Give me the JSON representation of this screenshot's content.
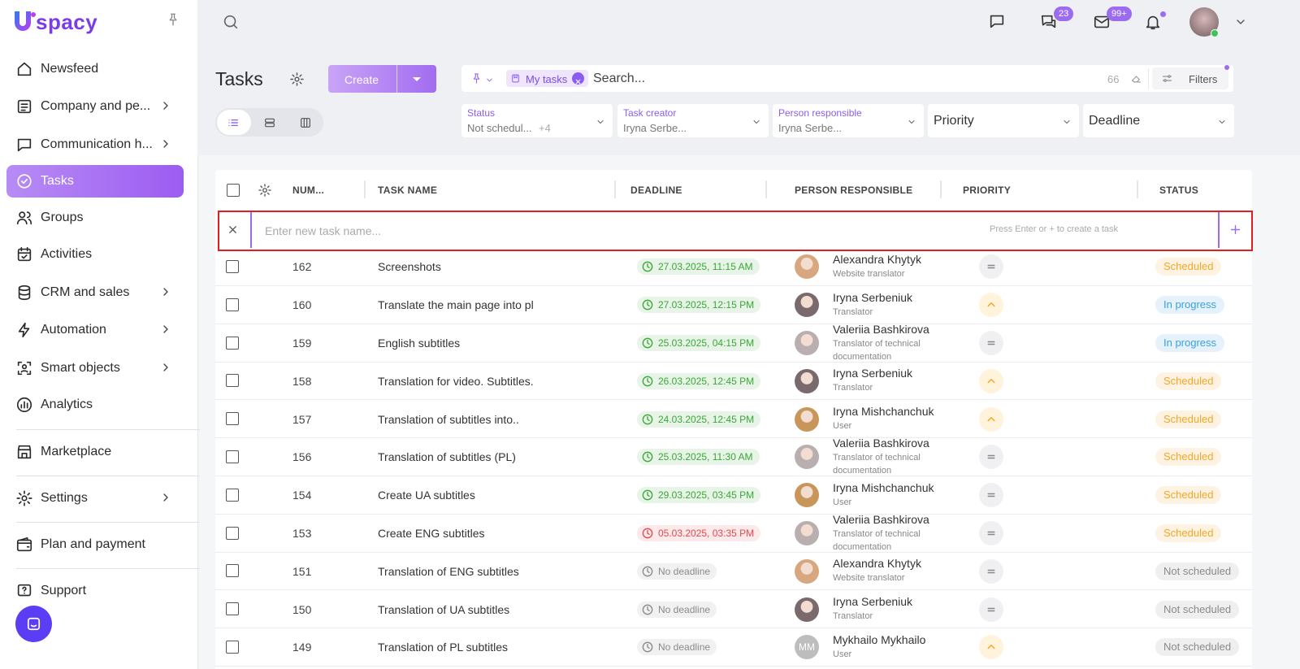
{
  "logo": "spacy",
  "sidebar": {
    "items": [
      {
        "label": "Newsfeed",
        "submenu": false
      },
      {
        "label": "Company and pe...",
        "submenu": true
      },
      {
        "label": "Communication h...",
        "submenu": true
      },
      {
        "label": "Tasks",
        "submenu": false,
        "active": true
      },
      {
        "label": "Groups",
        "submenu": false
      },
      {
        "label": "Activities",
        "submenu": false
      },
      {
        "label": "CRM and sales",
        "submenu": true
      },
      {
        "label": "Automation",
        "submenu": true
      },
      {
        "label": "Smart objects",
        "submenu": true
      },
      {
        "label": "Analytics",
        "submenu": false
      },
      {
        "label": "Marketplace",
        "submenu": false
      },
      {
        "label": "Settings",
        "submenu": true
      },
      {
        "label": "Plan and payment",
        "submenu": false
      },
      {
        "label": "Support",
        "submenu": false
      }
    ]
  },
  "topbar": {
    "chat_badge": "23",
    "mail_badge": "99+"
  },
  "header": {
    "title": "Tasks",
    "create": "Create"
  },
  "search": {
    "chip": "My tasks",
    "placeholder": "Search...",
    "count": "66",
    "filters": "Filters"
  },
  "filters": [
    {
      "label": "Status",
      "value": "Not schedul...",
      "extra": "+4"
    },
    {
      "label": "Task creator",
      "value": "Iryna Serbe..."
    },
    {
      "label": "Person responsible",
      "value": "Iryna Serbe..."
    },
    {
      "placeholder": "Priority"
    },
    {
      "placeholder": "Deadline"
    }
  ],
  "table": {
    "columns": [
      "NUM...",
      "TASK NAME",
      "DEADLINE",
      "PERSON RESPONSIBLE",
      "PRIORITY",
      "STATUS"
    ],
    "new_task": {
      "placeholder": "Enter new task name...",
      "hint": "Press Enter or + to create a task"
    },
    "rows": [
      {
        "number": 162,
        "name": "Screenshots",
        "deadline": "27.03.2025, 11:15 AM",
        "deadline_color": "#3aa836",
        "person": "Alexandra Khytyk",
        "role": "Website translator",
        "avatar_color": "#d9a77f",
        "priority_icon": "equal",
        "status": "Scheduled",
        "status_color": "#f5a623"
      },
      {
        "number": 160,
        "name": "Translate the main page into pl",
        "deadline": "27.03.2025, 12:15 PM",
        "deadline_color": "#3aa836",
        "person": "Iryna Serbeniuk",
        "role": "Translator",
        "avatar_color": "#7a6a6e",
        "priority_icon": "up",
        "status": "In progress",
        "status_color": "#3aa0e0"
      },
      {
        "number": 159,
        "name": "English subtitles",
        "deadline": "25.03.2025, 04:15 PM",
        "deadline_color": "#3aa836",
        "person": "Valeriia Bashkirova",
        "role": "Translator of technical documentation",
        "avatar_color": "#b9aeb0",
        "priority_icon": "equal",
        "status": "In progress",
        "status_color": "#3aa0e0"
      },
      {
        "number": 158,
        "name": "Translation for video. Subtitles.",
        "deadline": "26.03.2025, 12:45 PM",
        "deadline_color": "#3aa836",
        "person": "Iryna Serbeniuk",
        "role": "Translator",
        "avatar_color": "#7a6a6e",
        "priority_icon": "up",
        "status": "Scheduled",
        "status_color": "#f5a623"
      },
      {
        "number": 157,
        "name": "Translation of subtitles into..",
        "deadline": "24.03.2025, 12:45 PM",
        "deadline_color": "#3aa836",
        "person": "Iryna Mishchanchuk",
        "role": "User",
        "avatar_color": "#c9965a",
        "priority_icon": "up",
        "status": "Scheduled",
        "status_color": "#f5a623"
      },
      {
        "number": 156,
        "name": "Translation of subtitles (PL)",
        "deadline": "25.03.2025, 11:30 AM",
        "deadline_color": "#3aa836",
        "person": "Valeriia Bashkirova",
        "role": "Translator of technical documentation",
        "avatar_color": "#b9aeb0",
        "priority_icon": "equal",
        "status": "Scheduled",
        "status_color": "#f5a623"
      },
      {
        "number": 154,
        "name": "Create UA subtitles",
        "deadline": "29.03.2025, 03:45 PM",
        "deadline_color": "#3aa836",
        "person": "Iryna Mishchanchuk",
        "role": "User",
        "avatar_color": "#c9965a",
        "priority_icon": "equal",
        "status": "Scheduled",
        "status_color": "#f5a623"
      },
      {
        "number": 153,
        "name": "Create ENG subtitles",
        "deadline": "05.03.2025, 03:35 PM",
        "deadline_color": "#e5484d",
        "person": "Valeriia Bashkirova",
        "role": "Translator of technical documentation",
        "avatar_color": "#b9aeb0",
        "priority_icon": "equal",
        "status": "Scheduled",
        "status_color": "#f5a623"
      },
      {
        "number": 151,
        "name": "Translation of ENG subtitles",
        "deadline": "No deadline",
        "deadline_color": "#8a8a8a",
        "person": "Alexandra Khytyk",
        "role": "Website translator",
        "avatar_color": "#d9a77f",
        "priority_icon": "equal",
        "status": "Not scheduled",
        "status_color": "#8a8a8a"
      },
      {
        "number": 150,
        "name": "Translation of UA subtitles",
        "deadline": "No deadline",
        "deadline_color": "#8a8a8a",
        "person": "Iryna Serbeniuk",
        "role": "Translator",
        "avatar_color": "#7a6a6e",
        "priority_icon": "equal",
        "status": "Not scheduled",
        "status_color": "#8a8a8a"
      },
      {
        "number": 149,
        "name": "Translation of PL subtitles",
        "deadline": "No deadline",
        "deadline_color": "#8a8a8a",
        "person": "Mykhailo Mykhailo",
        "role": "User",
        "avatar_color": "#bdbdbd",
        "initials": "MM",
        "priority_icon": "up",
        "status": "Not scheduled",
        "status_color": "#8a8a8a"
      }
    ]
  }
}
